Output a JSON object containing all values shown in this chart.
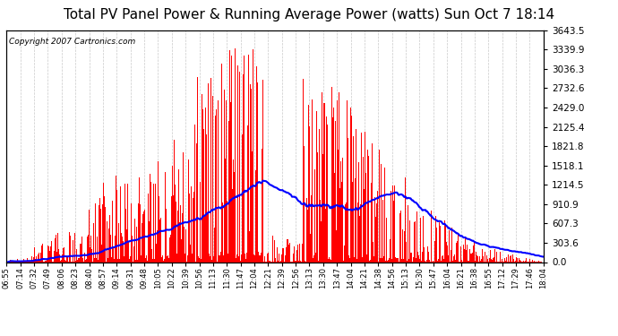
{
  "title": "Total PV Panel Power & Running Average Power (watts) Sun Oct 7 18:14",
  "copyright": "Copyright 2007 Cartronics.com",
  "ylabel_right_values": [
    0.0,
    303.6,
    607.3,
    910.9,
    1214.5,
    1518.1,
    1821.8,
    2125.4,
    2429.0,
    2732.6,
    3036.3,
    3339.9,
    3643.5
  ],
  "ymax": 3643.5,
  "ymin": 0.0,
  "background_color": "#ffffff",
  "plot_bg_color": "#ffffff",
  "grid_color": "#bbbbbb",
  "bar_color": "#ff0000",
  "line_color": "#0000ff",
  "title_fontsize": 11,
  "x_labels": [
    "06:55",
    "07:14",
    "07:32",
    "07:49",
    "08:06",
    "08:23",
    "08:40",
    "08:57",
    "09:14",
    "09:31",
    "09:48",
    "10:05",
    "10:22",
    "10:39",
    "10:56",
    "11:13",
    "11:30",
    "11:47",
    "12:04",
    "12:21",
    "12:39",
    "12:56",
    "13:13",
    "13:30",
    "13:47",
    "14:04",
    "14:21",
    "14:38",
    "14:56",
    "15:13",
    "15:30",
    "15:47",
    "16:04",
    "16:21",
    "16:38",
    "16:55",
    "17:12",
    "17:29",
    "17:46",
    "18:04"
  ],
  "n_points": 680,
  "running_avg_window": 120,
  "seed": 12
}
